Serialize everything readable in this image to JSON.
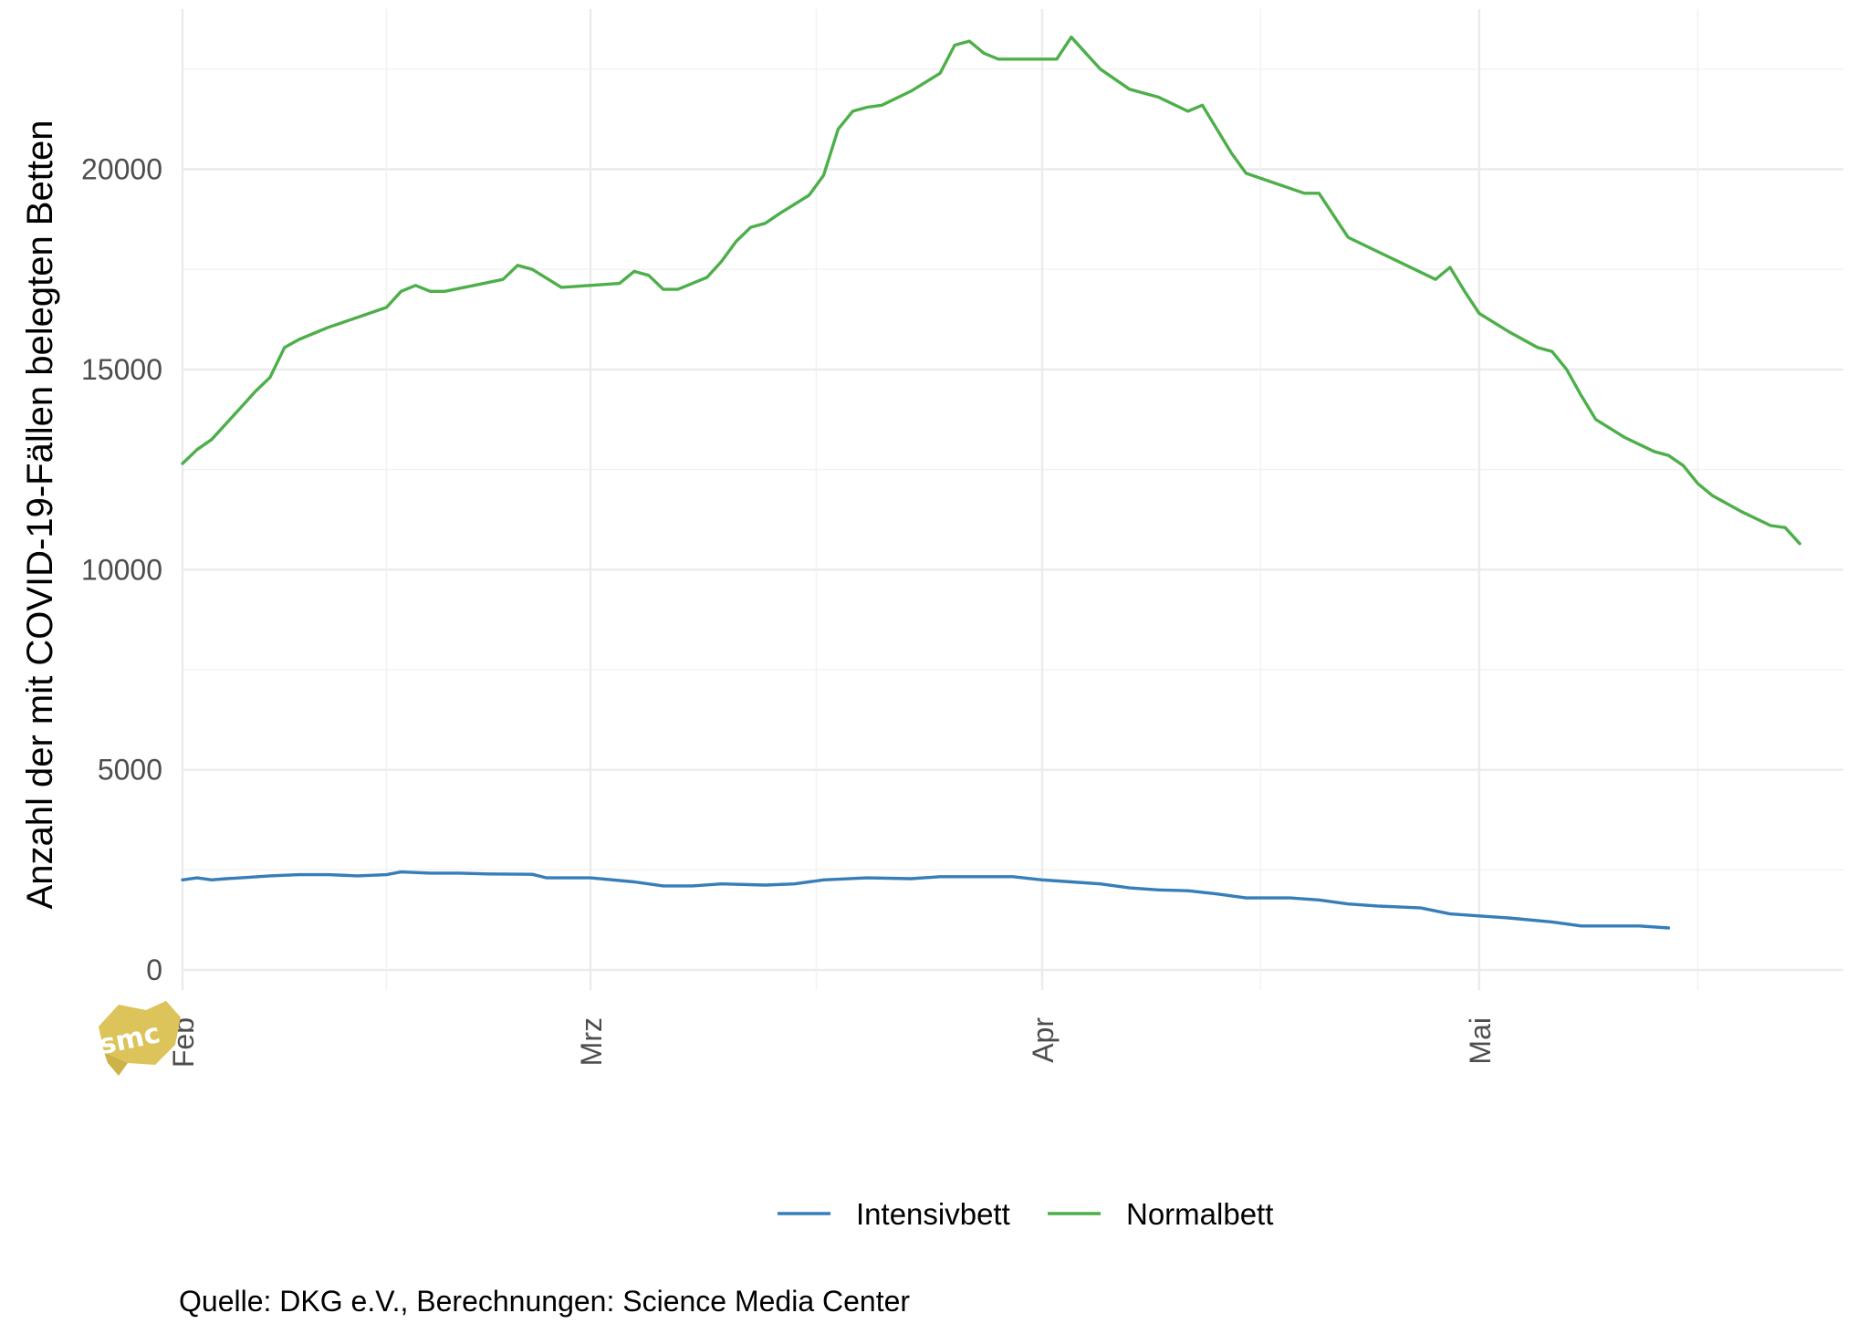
{
  "chart_data": {
    "type": "line",
    "ylabel": "Anzahl der mit COVID-19-Fällen belegten Betten",
    "xlabel": "",
    "caption": "Quelle: DKG e.V., Berechnungen: Science Media Center",
    "logo_text": "smc",
    "ylim": [
      -500,
      24000
    ],
    "y_ticks": [
      0,
      5000,
      10000,
      15000,
      20000
    ],
    "y_tick_labels": [
      "0",
      "5000",
      "10000",
      "15000",
      "20000"
    ],
    "x_ticks": [
      {
        "date": "2021-02-01",
        "label": "Feb"
      },
      {
        "date": "2021-03-01",
        "label": "Mrz"
      },
      {
        "date": "2021-04-01",
        "label": "Apr"
      },
      {
        "date": "2021-05-01",
        "label": "Mai"
      }
    ],
    "x_range": [
      "2021-02-01",
      "2021-05-26"
    ],
    "grid": true,
    "legend_position": "bottom",
    "series": [
      {
        "name": "Intensivbett",
        "color": "#377eb8",
        "points": [
          [
            "2021-02-01",
            2250
          ],
          [
            "2021-02-02",
            2300
          ],
          [
            "2021-02-03",
            2250
          ],
          [
            "2021-02-04",
            2280
          ],
          [
            "2021-02-05",
            2300
          ],
          [
            "2021-02-07",
            2350
          ],
          [
            "2021-02-09",
            2380
          ],
          [
            "2021-02-11",
            2380
          ],
          [
            "2021-02-13",
            2350
          ],
          [
            "2021-02-15",
            2380
          ],
          [
            "2021-02-16",
            2450
          ],
          [
            "2021-02-18",
            2420
          ],
          [
            "2021-02-20",
            2420
          ],
          [
            "2021-02-22",
            2400
          ],
          [
            "2021-02-25",
            2390
          ],
          [
            "2021-02-26",
            2300
          ],
          [
            "2021-03-01",
            2300
          ],
          [
            "2021-03-04",
            2200
          ],
          [
            "2021-03-06",
            2100
          ],
          [
            "2021-03-08",
            2100
          ],
          [
            "2021-03-10",
            2150
          ],
          [
            "2021-03-13",
            2120
          ],
          [
            "2021-03-15",
            2150
          ],
          [
            "2021-03-17",
            2250
          ],
          [
            "2021-03-20",
            2300
          ],
          [
            "2021-03-23",
            2280
          ],
          [
            "2021-03-25",
            2330
          ],
          [
            "2021-03-28",
            2330
          ],
          [
            "2021-03-30",
            2330
          ],
          [
            "2021-04-01",
            2250
          ],
          [
            "2021-04-03",
            2200
          ],
          [
            "2021-04-05",
            2150
          ],
          [
            "2021-04-07",
            2050
          ],
          [
            "2021-04-09",
            2000
          ],
          [
            "2021-04-11",
            1980
          ],
          [
            "2021-04-13",
            1900
          ],
          [
            "2021-04-15",
            1800
          ],
          [
            "2021-04-18",
            1800
          ],
          [
            "2021-04-20",
            1750
          ],
          [
            "2021-04-22",
            1650
          ],
          [
            "2021-04-24",
            1600
          ],
          [
            "2021-04-27",
            1550
          ],
          [
            "2021-04-29",
            1400
          ],
          [
            "2021-05-01",
            1350
          ],
          [
            "2021-05-03",
            1300
          ],
          [
            "2021-05-06",
            1200
          ],
          [
            "2021-05-08",
            1100
          ],
          [
            "2021-05-12",
            1100
          ],
          [
            "2021-05-14",
            1050
          ]
        ]
      },
      {
        "name": "Normalbett",
        "color": "#4daf4a",
        "points": [
          [
            "2021-02-01",
            12650
          ],
          [
            "2021-02-02",
            13000
          ],
          [
            "2021-02-03",
            13250
          ],
          [
            "2021-02-04",
            13650
          ],
          [
            "2021-02-05",
            14050
          ],
          [
            "2021-02-06",
            14450
          ],
          [
            "2021-02-07",
            14800
          ],
          [
            "2021-02-08",
            15550
          ],
          [
            "2021-02-09",
            15750
          ],
          [
            "2021-02-11",
            16050
          ],
          [
            "2021-02-13",
            16300
          ],
          [
            "2021-02-15",
            16550
          ],
          [
            "2021-02-16",
            16950
          ],
          [
            "2021-02-17",
            17100
          ],
          [
            "2021-02-18",
            16950
          ],
          [
            "2021-02-19",
            16950
          ],
          [
            "2021-02-21",
            17100
          ],
          [
            "2021-02-23",
            17250
          ],
          [
            "2021-02-24",
            17600
          ],
          [
            "2021-02-25",
            17500
          ],
          [
            "2021-02-27",
            17050
          ],
          [
            "2021-03-01",
            17100
          ],
          [
            "2021-03-03",
            17150
          ],
          [
            "2021-03-04",
            17450
          ],
          [
            "2021-03-05",
            17350
          ],
          [
            "2021-03-06",
            17000
          ],
          [
            "2021-03-07",
            17000
          ],
          [
            "2021-03-09",
            17300
          ],
          [
            "2021-03-10",
            17700
          ],
          [
            "2021-03-11",
            18200
          ],
          [
            "2021-03-12",
            18550
          ],
          [
            "2021-03-13",
            18650
          ],
          [
            "2021-03-14",
            18900
          ],
          [
            "2021-03-16",
            19350
          ],
          [
            "2021-03-17",
            19850
          ],
          [
            "2021-03-18",
            21000
          ],
          [
            "2021-03-19",
            21450
          ],
          [
            "2021-03-20",
            21550
          ],
          [
            "2021-03-21",
            21600
          ],
          [
            "2021-03-23",
            21950
          ],
          [
            "2021-03-25",
            22400
          ],
          [
            "2021-03-26",
            23100
          ],
          [
            "2021-03-27",
            23200
          ],
          [
            "2021-03-28",
            22900
          ],
          [
            "2021-03-29",
            22750
          ],
          [
            "2021-04-02",
            22750
          ],
          [
            "2021-04-03",
            23300
          ],
          [
            "2021-04-04",
            22900
          ],
          [
            "2021-04-05",
            22500
          ],
          [
            "2021-04-07",
            22000
          ],
          [
            "2021-04-09",
            21800
          ],
          [
            "2021-04-11",
            21450
          ],
          [
            "2021-04-12",
            21600
          ],
          [
            "2021-04-14",
            20400
          ],
          [
            "2021-04-15",
            19900
          ],
          [
            "2021-04-17",
            19650
          ],
          [
            "2021-04-19",
            19400
          ],
          [
            "2021-04-20",
            19400
          ],
          [
            "2021-04-22",
            18300
          ],
          [
            "2021-04-24",
            17950
          ],
          [
            "2021-04-26",
            17600
          ],
          [
            "2021-04-28",
            17250
          ],
          [
            "2021-04-29",
            17550
          ],
          [
            "2021-04-30",
            16950
          ],
          [
            "2021-05-01",
            16400
          ],
          [
            "2021-05-03",
            15950
          ],
          [
            "2021-05-05",
            15550
          ],
          [
            "2021-05-06",
            15450
          ],
          [
            "2021-05-07",
            15000
          ],
          [
            "2021-05-08",
            14350
          ],
          [
            "2021-05-09",
            13750
          ],
          [
            "2021-05-11",
            13300
          ],
          [
            "2021-05-13",
            12950
          ],
          [
            "2021-05-14",
            12850
          ],
          [
            "2021-05-15",
            12600
          ],
          [
            "2021-05-16",
            12150
          ],
          [
            "2021-05-17",
            11850
          ],
          [
            "2021-05-19",
            11450
          ],
          [
            "2021-05-21",
            11100
          ],
          [
            "2021-05-22",
            11050
          ],
          [
            "2021-05-23",
            10650
          ]
        ]
      }
    ]
  }
}
